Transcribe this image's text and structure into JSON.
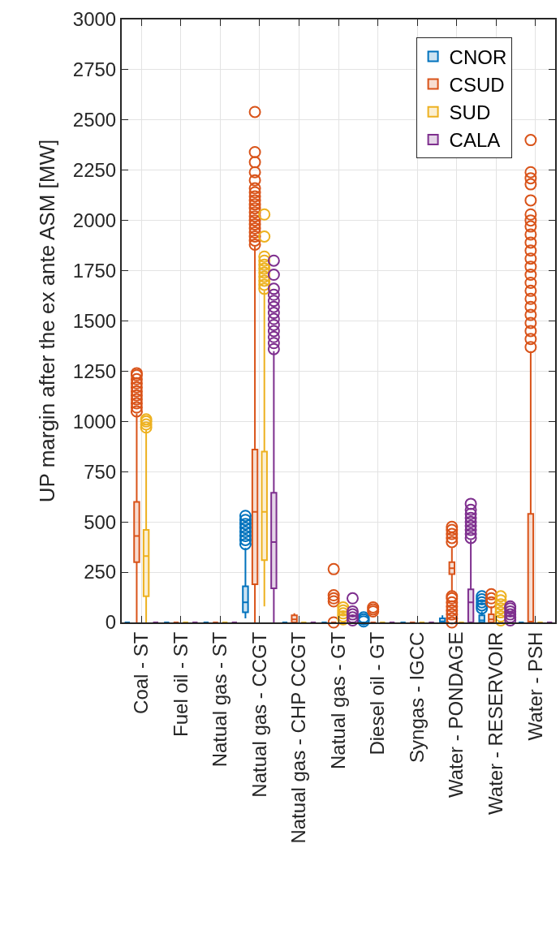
{
  "chart_data": {
    "type": "box",
    "ylabel": "UP margin after the ex ante ASM [MW]",
    "categories": [
      "Coal - ST",
      "Fuel oil - ST",
      "Natual gas - ST",
      "Natual gas - CCGT",
      "Natual gas - CHP CCGT",
      "Natual gas - GT",
      "Diesel oil - GT",
      "Syngas - IGCC",
      "Water - PONDAGE",
      "Water - RESERVOIR",
      "Water - PSH"
    ],
    "ylim": [
      0,
      3000
    ],
    "yticks": [
      0,
      250,
      500,
      750,
      1000,
      1250,
      1500,
      1750,
      2000,
      2250,
      2500,
      2750,
      3000
    ],
    "grid": true,
    "legend": "top right",
    "marker": "circle",
    "series": [
      {
        "name": "CNOR",
        "color": "#0072bd",
        "boxes": [
          {
            "low": 0,
            "q1": 0,
            "median": 0,
            "q3": 0,
            "high": 0
          },
          {
            "low": 0,
            "q1": 0,
            "median": 0,
            "q3": 0,
            "high": 0
          },
          {
            "low": 0,
            "q1": 0,
            "median": 0,
            "q3": 0,
            "high": 0
          },
          {
            "low": 20,
            "q1": 50,
            "median": 100,
            "q3": 180,
            "high": 370,
            "outliers": [
              390,
              410,
              430,
              450,
              470,
              490,
              510,
              530
            ]
          },
          {
            "low": 0,
            "q1": 0,
            "median": 0,
            "q3": 0,
            "high": 0
          },
          {
            "low": 0,
            "q1": 0,
            "median": 0,
            "q3": 0,
            "high": 0
          },
          {
            "low": 0,
            "q1": 0,
            "median": 0,
            "q3": 0,
            "high": 0,
            "outliers": [
              5,
              15,
              25
            ]
          },
          {
            "low": 0,
            "q1": 0,
            "median": 0,
            "q3": 0,
            "high": 0
          },
          {
            "low": 0,
            "q1": 0,
            "median": 5,
            "q3": 20,
            "high": 35
          },
          {
            "low": 0,
            "q1": 0,
            "median": 10,
            "q3": 35,
            "high": 55,
            "outliers": [
              70,
              85,
              100,
              115,
              130
            ]
          },
          {
            "low": 0,
            "q1": 0,
            "median": 0,
            "q3": 0,
            "high": 0
          }
        ]
      },
      {
        "name": "CSUD",
        "color": "#d95319",
        "boxes": [
          {
            "low": 0,
            "q1": 300,
            "median": 430,
            "q3": 600,
            "high": 1040,
            "outliers": [
              1050,
              1070,
              1090,
              1110,
              1130,
              1150,
              1170,
              1190,
              1210,
              1230,
              1240
            ]
          },
          {
            "low": 0,
            "q1": 0,
            "median": 0,
            "q3": 0,
            "high": 0
          },
          {
            "low": 0,
            "q1": 0,
            "median": 0,
            "q3": 0,
            "high": 0
          },
          {
            "low": 0,
            "q1": 190,
            "median": 550,
            "q3": 860,
            "high": 1870,
            "outliers": [
              1880,
              1900,
              1920,
              1940,
              1960,
              1980,
              2000,
              2020,
              2040,
              2060,
              2080,
              2100,
              2120,
              2140,
              2160,
              2200,
              2240,
              2290,
              2340,
              2540
            ]
          },
          {
            "low": 0,
            "q1": 0,
            "median": 15,
            "q3": 35,
            "high": 45
          },
          {
            "low": 0,
            "q1": 0,
            "median": 0,
            "q3": 0,
            "high": 0,
            "outliers": [
              0,
              105,
              120,
              135,
              265
            ]
          },
          {
            "low": 0,
            "q1": 0,
            "median": 0,
            "q3": 0,
            "high": 0,
            "outliers": [
              55,
              65,
              75
            ]
          },
          {
            "low": 0,
            "q1": 0,
            "median": 0,
            "q3": 0,
            "high": 0
          },
          {
            "low": 150,
            "q1": 240,
            "median": 270,
            "q3": 300,
            "high": 370,
            "outliers": [
              0,
              20,
              40,
              60,
              80,
              100,
              120,
              130,
              400,
              420,
              440,
              460,
              475
            ]
          },
          {
            "low": 0,
            "q1": 0,
            "median": 15,
            "q3": 40,
            "high": 80,
            "outliers": [
              100,
              120,
              140
            ]
          },
          {
            "low": 0,
            "q1": 0,
            "median": 0,
            "q3": 540,
            "high": 1350,
            "outliers": [
              1370,
              1410,
              1450,
              1490,
              1530,
              1570,
              1610,
              1650,
              1690,
              1730,
              1770,
              1810,
              1850,
              1890,
              1930,
              1970,
              2000,
              2030,
              2100,
              2180,
              2210,
              2240,
              2400
            ]
          }
        ]
      },
      {
        "name": "SUD",
        "color": "#edb120",
        "boxes": [
          {
            "low": 0,
            "q1": 130,
            "median": 330,
            "q3": 460,
            "high": 960,
            "outliers": [
              970,
              985,
              1000,
              1010
            ]
          },
          {
            "low": 0,
            "q1": 0,
            "median": 0,
            "q3": 0,
            "high": 0
          },
          {
            "low": 0,
            "q1": 0,
            "median": 0,
            "q3": 0,
            "high": 0
          },
          {
            "low": 80,
            "q1": 310,
            "median": 550,
            "q3": 850,
            "high": 1650,
            "outliers": [
              1660,
              1680,
              1700,
              1720,
              1740,
              1760,
              1780,
              1800,
              1820,
              1920,
              2030
            ]
          },
          {
            "low": 0,
            "q1": 0,
            "median": 0,
            "q3": 0,
            "high": 0
          },
          {
            "low": 0,
            "q1": 0,
            "median": 0,
            "q3": 0,
            "high": 0,
            "outliers": [
              15,
              30,
              45,
              60,
              75
            ]
          },
          {
            "low": 0,
            "q1": 0,
            "median": 0,
            "q3": 0,
            "high": 0
          },
          {
            "low": 0,
            "q1": 0,
            "median": 0,
            "q3": 0,
            "high": 0
          },
          {
            "low": 0,
            "q1": 0,
            "median": 0,
            "q3": 0,
            "high": 0
          },
          {
            "low": 0,
            "q1": 0,
            "median": 0,
            "q3": 0,
            "high": 0,
            "outliers": [
              10,
              30,
              50,
              70,
              90,
              110,
              130
            ]
          },
          {
            "low": 0,
            "q1": 0,
            "median": 0,
            "q3": 0,
            "high": 0
          }
        ]
      },
      {
        "name": "CALA",
        "color": "#7e2f8e",
        "boxes": [
          {
            "low": 0,
            "q1": 0,
            "median": 0,
            "q3": 0,
            "high": 0
          },
          {
            "low": 0,
            "q1": 0,
            "median": 0,
            "q3": 0,
            "high": 0
          },
          {
            "low": 0,
            "q1": 0,
            "median": 0,
            "q3": 0,
            "high": 0
          },
          {
            "low": 0,
            "q1": 170,
            "median": 400,
            "q3": 645,
            "high": 1350,
            "outliers": [
              1360,
              1390,
              1420,
              1450,
              1480,
              1510,
              1540,
              1570,
              1600,
              1630,
              1660,
              1730,
              1800
            ]
          },
          {
            "low": 0,
            "q1": 0,
            "median": 0,
            "q3": 0,
            "high": 0
          },
          {
            "low": 0,
            "q1": 0,
            "median": 0,
            "q3": 0,
            "high": 0,
            "outliers": [
              10,
              25,
              40,
              55,
              120
            ]
          },
          {
            "low": 0,
            "q1": 0,
            "median": 0,
            "q3": 0,
            "high": 0
          },
          {
            "low": 0,
            "q1": 0,
            "median": 0,
            "q3": 0,
            "high": 0
          },
          {
            "low": 0,
            "q1": 0,
            "median": 100,
            "q3": 165,
            "high": 410,
            "outliers": [
              420,
              440,
              460,
              480,
              500,
              520,
              540,
              560,
              590
            ]
          },
          {
            "low": 0,
            "q1": 0,
            "median": 0,
            "q3": 0,
            "high": 0,
            "outliers": [
              10,
              25,
              40,
              55,
              70,
              80
            ]
          },
          {
            "low": 0,
            "q1": 0,
            "median": 0,
            "q3": 0,
            "high": 0
          }
        ]
      }
    ]
  }
}
